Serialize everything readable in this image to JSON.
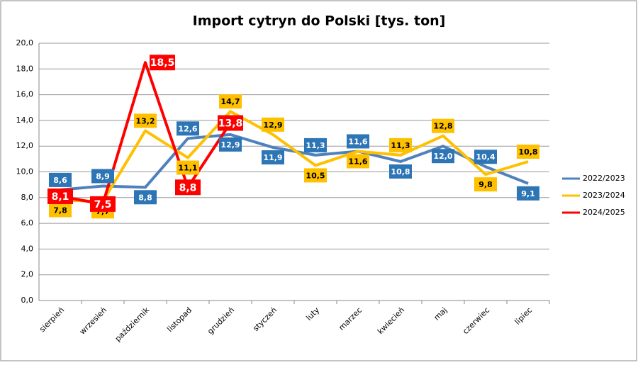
{
  "chart_data": {
    "type": "line",
    "title": "Import cytryn do Polski [tys. ton]",
    "categories": [
      "sierpień",
      "wrzesień",
      "październik",
      "listopad",
      "grudzień",
      "styczeń",
      "luty",
      "marzec",
      "kwiecień",
      "maj",
      "czerwiec",
      "lipiec"
    ],
    "series": [
      {
        "name": "2022/2023",
        "color": "#4f81bd",
        "label_color": "#2e75b6",
        "label_text_color": "#ffffff",
        "values": [
          8.6,
          8.9,
          8.8,
          12.6,
          12.9,
          11.9,
          11.3,
          11.6,
          10.8,
          12.0,
          10.4,
          9.1
        ],
        "value_labels": [
          "8,6",
          "8,9",
          "8,8",
          "12,6",
          "12,9",
          "11,9",
          "11,3",
          "11,6",
          "10,8",
          "12,0",
          "10,4",
          "9,1"
        ]
      },
      {
        "name": "2023/2024",
        "color": "#ffc000",
        "label_color": "#ffc000",
        "label_text_color": "#000000",
        "values": [
          7.8,
          7.7,
          13.2,
          11.1,
          14.7,
          12.9,
          10.5,
          11.6,
          11.3,
          12.8,
          9.8,
          10.8
        ],
        "value_labels": [
          "7,8",
          "7,7",
          "13,2",
          "11,1",
          "14,7",
          "12,9",
          "10,5",
          "11,6",
          "11,3",
          "12,8",
          "9,8",
          "10,8"
        ]
      },
      {
        "name": "2024/2025",
        "color": "#ff0000",
        "label_color": "#ff0000",
        "label_text_color": "#ffffff",
        "values": [
          8.1,
          7.5,
          18.5,
          8.8,
          13.8,
          null,
          null,
          null,
          null,
          null,
          null,
          null
        ],
        "value_labels": [
          "8,1",
          "7,5",
          "18,5",
          "8,8",
          "13,8",
          null,
          null,
          null,
          null,
          null,
          null,
          null
        ]
      }
    ],
    "ylim": [
      0,
      20
    ],
    "yticks": [
      {
        "value": 0,
        "label": "0,0"
      },
      {
        "value": 2,
        "label": "2,0"
      },
      {
        "value": 4,
        "label": "4,0"
      },
      {
        "value": 6,
        "label": "6,0"
      },
      {
        "value": 8,
        "label": "8,0"
      },
      {
        "value": 10,
        "label": "10,0"
      },
      {
        "value": 12,
        "label": "12,0"
      },
      {
        "value": 14,
        "label": "14,0"
      },
      {
        "value": 16,
        "label": "16,0"
      },
      {
        "value": 18,
        "label": "18,0"
      },
      {
        "value": 20,
        "label": "20,0"
      }
    ],
    "grid": true,
    "legend": "right"
  }
}
